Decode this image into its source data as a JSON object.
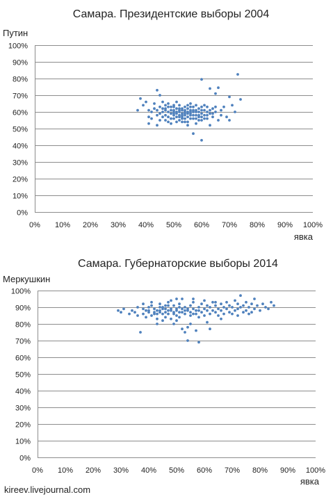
{
  "colors": {
    "point": "#4f81bd",
    "grid": "#8c8c8c",
    "text": "#222222"
  },
  "credit": "kireev.livejournal.com",
  "chart_data": [
    {
      "type": "scatter",
      "title": "Самара. Президентские выборы 2004",
      "xlabel": "явка",
      "ylabel": "Путин",
      "xlim": [
        0,
        100
      ],
      "ylim": [
        0,
        100
      ],
      "x_ticks": [
        "0%",
        "10%",
        "20%",
        "30%",
        "40%",
        "50%",
        "60%",
        "70%",
        "80%",
        "90%",
        "100%"
      ],
      "y_ticks": [
        "0%",
        "10%",
        "20%",
        "30%",
        "40%",
        "50%",
        "60%",
        "70%",
        "80%",
        "90%",
        "100%"
      ],
      "grid": "horizontal",
      "series": [
        {
          "points": [
            [
              73,
              82.5
            ],
            [
              60,
              79.5
            ],
            [
              74,
              67.5
            ],
            [
              70,
              69
            ],
            [
              63,
              74
            ],
            [
              66,
              74.5
            ],
            [
              65,
              71
            ],
            [
              61,
              64
            ],
            [
              60,
              43
            ],
            [
              57,
              47
            ],
            [
              44,
              73
            ],
            [
              45,
              70
            ],
            [
              46,
              66
            ],
            [
              42,
              60
            ],
            [
              41,
              57
            ],
            [
              41,
              53
            ],
            [
              37,
              61
            ],
            [
              38,
              68
            ],
            [
              43,
              62
            ],
            [
              44,
              58
            ],
            [
              45,
              55
            ],
            [
              44,
              52
            ],
            [
              47,
              58
            ],
            [
              47,
              62
            ],
            [
              48,
              65
            ],
            [
              48,
              60
            ],
            [
              49,
              56
            ],
            [
              49,
              53
            ],
            [
              50,
              61
            ],
            [
              50,
              63
            ],
            [
              50,
              58
            ],
            [
              51,
              66
            ],
            [
              51,
              60
            ],
            [
              51,
              57
            ],
            [
              52,
              55
            ],
            [
              52,
              62
            ],
            [
              52,
              64
            ],
            [
              53,
              59
            ],
            [
              53,
              61
            ],
            [
              53,
              56
            ],
            [
              54,
              63
            ],
            [
              54,
              58
            ],
            [
              54,
              60
            ],
            [
              55,
              57
            ],
            [
              55,
              62
            ],
            [
              55,
              54
            ],
            [
              55,
              52
            ],
            [
              56,
              61
            ],
            [
              56,
              59
            ],
            [
              56,
              65
            ],
            [
              57,
              60
            ],
            [
              57,
              56
            ],
            [
              57,
              63
            ],
            [
              58,
              58
            ],
            [
              58,
              61
            ],
            [
              58,
              53
            ],
            [
              59,
              62
            ],
            [
              59,
              57
            ],
            [
              59,
              60
            ],
            [
              60,
              59
            ],
            [
              60,
              55
            ],
            [
              60,
              63
            ],
            [
              61,
              58
            ],
            [
              61,
              61
            ],
            [
              62,
              60
            ],
            [
              62,
              56
            ],
            [
              63,
              59
            ],
            [
              63,
              52
            ],
            [
              64,
              57
            ],
            [
              64,
              62
            ],
            [
              65,
              60
            ],
            [
              66,
              55
            ],
            [
              67,
              58
            ],
            [
              68,
              63
            ],
            [
              69,
              57
            ],
            [
              70,
              55
            ],
            [
              71,
              64
            ],
            [
              72,
              60
            ],
            [
              46,
              60
            ],
            [
              47,
              55
            ],
            [
              48,
              63
            ],
            [
              49,
              61
            ],
            [
              50,
              59
            ],
            [
              51,
              62
            ],
            [
              52,
              58
            ],
            [
              53,
              57
            ],
            [
              54,
              61
            ],
            [
              55,
              59
            ],
            [
              56,
              58
            ],
            [
              57,
              61
            ],
            [
              58,
              60
            ],
            [
              59,
              58
            ],
            [
              50,
              60
            ],
            [
              51,
              59
            ],
            [
              52,
              61
            ],
            [
              53,
              62
            ],
            [
              54,
              59
            ],
            [
              55,
              60
            ],
            [
              56,
              60
            ],
            [
              53,
              58
            ],
            [
              45,
              63
            ],
            [
              46,
              57
            ],
            [
              47,
              64
            ],
            [
              48,
              57
            ],
            [
              49,
              63
            ],
            [
              50,
              56
            ],
            [
              51,
              54
            ],
            [
              52,
              57
            ],
            [
              53,
              54
            ],
            [
              54,
              56
            ],
            [
              55,
              64
            ],
            [
              56,
              56
            ],
            [
              57,
              58
            ],
            [
              58,
              56
            ],
            [
              59,
              55
            ],
            [
              60,
              61
            ],
            [
              61,
              56
            ],
            [
              62,
              63
            ],
            [
              63,
              61
            ],
            [
              64,
              59
            ],
            [
              43,
              65
            ],
            [
              44,
              61
            ],
            [
              40,
              66
            ],
            [
              39,
              64
            ],
            [
              42,
              56
            ],
            [
              46,
              62
            ],
            [
              48,
              54
            ],
            [
              49,
              59
            ],
            [
              50,
              64
            ],
            [
              52,
              60
            ],
            [
              54,
              54
            ],
            [
              56,
              63
            ],
            [
              58,
              64
            ],
            [
              60,
              57
            ],
            [
              62,
              58
            ],
            [
              65,
              63
            ],
            [
              67,
              61
            ],
            [
              41,
              61
            ],
            [
              45,
              59
            ],
            [
              47,
              61
            ]
          ]
        }
      ]
    },
    {
      "type": "scatter",
      "title": "Самара. Губернаторские выборы 2014",
      "xlabel": "явка",
      "ylabel": "Меркушкин",
      "xlim": [
        0,
        100
      ],
      "ylim": [
        0,
        100
      ],
      "x_ticks": [
        "0%",
        "10%",
        "20%",
        "30%",
        "40%",
        "50%",
        "60%",
        "70%",
        "80%",
        "90%",
        "100%"
      ],
      "y_ticks": [
        "0%",
        "10%",
        "20%",
        "30%",
        "40%",
        "50%",
        "60%",
        "70%",
        "80%",
        "90%",
        "100%"
      ],
      "grid": "horizontal",
      "series": [
        {
          "points": [
            [
              29,
              88
            ],
            [
              30,
              87
            ],
            [
              31,
              89
            ],
            [
              33,
              86
            ],
            [
              34,
              88
            ],
            [
              35,
              87
            ],
            [
              36,
              85
            ],
            [
              37,
              75
            ],
            [
              38,
              89
            ],
            [
              38,
              86
            ],
            [
              39,
              88
            ],
            [
              39,
              84
            ],
            [
              40,
              90
            ],
            [
              40,
              87
            ],
            [
              41,
              85
            ],
            [
              41,
              91
            ],
            [
              42,
              89
            ],
            [
              42,
              86
            ],
            [
              43,
              88
            ],
            [
              43,
              83
            ],
            [
              44,
              90
            ],
            [
              44,
              87
            ],
            [
              45,
              86
            ],
            [
              45,
              89
            ],
            [
              46,
              91
            ],
            [
              46,
              84
            ],
            [
              47,
              88
            ],
            [
              47,
              86
            ],
            [
              48,
              89
            ],
            [
              48,
              94
            ],
            [
              49,
              87
            ],
            [
              49,
              91
            ],
            [
              50,
              88
            ],
            [
              50,
              85
            ],
            [
              51,
              92
            ],
            [
              51,
              87
            ],
            [
              52,
              89
            ],
            [
              52,
              95
            ],
            [
              53,
              86
            ],
            [
              53,
              90
            ],
            [
              54,
              88
            ],
            [
              54,
              78
            ],
            [
              55,
              91
            ],
            [
              55,
              87
            ],
            [
              56,
              89
            ],
            [
              56,
              93
            ],
            [
              57,
              86
            ],
            [
              57,
              88
            ],
            [
              58,
              90
            ],
            [
              58,
              84
            ],
            [
              59,
              87
            ],
            [
              59,
              92
            ],
            [
              60,
              89
            ],
            [
              60,
              85
            ],
            [
              61,
              91
            ],
            [
              61,
              88
            ],
            [
              62,
              86
            ],
            [
              62,
              90
            ],
            [
              63,
              93
            ],
            [
              63,
              88
            ],
            [
              64,
              87
            ],
            [
              64,
              91
            ],
            [
              65,
              89
            ],
            [
              65,
              85
            ],
            [
              66,
              92
            ],
            [
              66,
              88
            ],
            [
              67,
              90
            ],
            [
              67,
              86
            ],
            [
              68,
              93
            ],
            [
              68,
              89
            ],
            [
              69,
              87
            ],
            [
              69,
              91
            ],
            [
              70,
              90
            ],
            [
              70,
              86
            ],
            [
              71,
              94
            ],
            [
              71,
              88
            ],
            [
              72,
              92
            ],
            [
              72,
              89
            ],
            [
              73,
              97
            ],
            [
              73,
              90
            ],
            [
              74,
              87
            ],
            [
              74,
              91
            ],
            [
              75,
              93
            ],
            [
              75,
              88
            ],
            [
              76,
              90
            ],
            [
              76,
              86
            ],
            [
              77,
              92
            ],
            [
              78,
              89
            ],
            [
              78,
              95
            ],
            [
              79,
              91
            ],
            [
              80,
              88
            ],
            [
              81,
              92
            ],
            [
              82,
              90
            ],
            [
              83,
              89
            ],
            [
              84,
              93
            ],
            [
              85,
              91
            ],
            [
              54,
              70
            ],
            [
              58,
              69
            ],
            [
              55,
              80
            ],
            [
              52,
              77
            ],
            [
              50,
              82
            ],
            [
              53,
              75
            ],
            [
              57,
              76
            ],
            [
              62,
              77
            ],
            [
              49,
              80
            ],
            [
              45,
              82
            ],
            [
              43,
              80
            ],
            [
              41,
              93
            ],
            [
              44,
              92
            ],
            [
              47,
              93
            ],
            [
              50,
              95
            ],
            [
              56,
              95
            ],
            [
              60,
              94
            ],
            [
              64,
              93
            ],
            [
              40,
              88
            ],
            [
              42,
              87
            ],
            [
              44,
              88
            ],
            [
              46,
              87
            ],
            [
              48,
              88
            ],
            [
              50,
              89
            ],
            [
              52,
              87
            ],
            [
              54,
              89
            ],
            [
              56,
              86
            ],
            [
              58,
              88
            ],
            [
              45,
              90
            ],
            [
              47,
              91
            ],
            [
              49,
              86
            ],
            [
              51,
              90
            ],
            [
              53,
              88
            ],
            [
              55,
              85
            ],
            [
              38,
              92
            ],
            [
              36,
              90
            ],
            [
              48,
              83
            ],
            [
              51,
              84
            ],
            [
              61,
              81
            ],
            [
              66,
              83
            ],
            [
              72,
              85
            ],
            [
              77,
              87
            ],
            [
              43,
              86
            ],
            [
              46,
              89
            ]
          ]
        }
      ]
    }
  ]
}
